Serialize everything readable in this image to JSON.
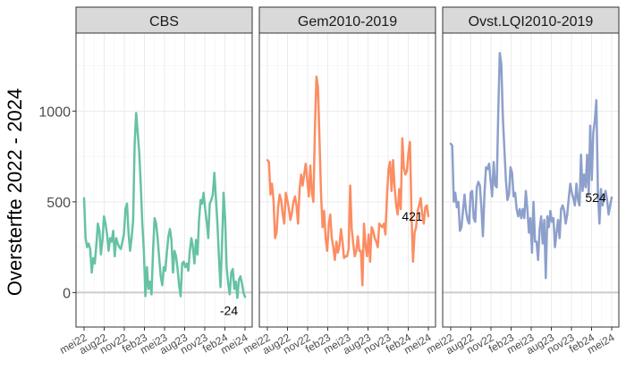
{
  "chart_data": {
    "type": "line",
    "ylabel": "Oversterfte 2022 - 2024",
    "ylim": [
      -190,
      1430
    ],
    "y_ticks": [
      0,
      500,
      1000
    ],
    "x_ticks": [
      "mei22",
      "aug22",
      "nov22",
      "feb23",
      "mei23",
      "aug23",
      "nov23",
      "feb24",
      "mei24"
    ],
    "reference_line": 0,
    "grid": true,
    "panels": [
      {
        "name": "CBS",
        "color": "#66c2a5",
        "last_label": "-24",
        "values": [
          520,
          300,
          250,
          270,
          240,
          110,
          190,
          160,
          260,
          380,
          340,
          210,
          290,
          420,
          380,
          320,
          230,
          300,
          280,
          340,
          200,
          300,
          270,
          250,
          240,
          280,
          320,
          460,
          490,
          330,
          230,
          300,
          400,
          820,
          990,
          880,
          770,
          590,
          380,
          230,
          -20,
          140,
          20,
          60,
          -10,
          230,
          410,
          380,
          300,
          190,
          90,
          40,
          140,
          120,
          220,
          310,
          350,
          290,
          110,
          230,
          200,
          130,
          40,
          -20,
          160,
          170,
          140,
          160,
          120,
          230,
          300,
          250,
          160,
          290,
          210,
          400,
          510,
          490,
          550,
          460,
          390,
          300,
          490,
          510,
          540,
          660,
          520,
          380,
          190,
          30,
          270,
          550,
          410,
          140,
          50,
          -10,
          110,
          130,
          20,
          60,
          -30,
          70,
          90,
          50,
          0,
          -24
        ]
      },
      {
        "name": "Gem2010-2019",
        "color": "#fc8d62",
        "last_label": "421",
        "values": [
          730,
          720,
          540,
          600,
          510,
          300,
          330,
          470,
          540,
          510,
          430,
          380,
          550,
          510,
          460,
          400,
          440,
          500,
          530,
          480,
          380,
          570,
          650,
          590,
          650,
          710,
          620,
          530,
          700,
          550,
          500,
          900,
          1190,
          1130,
          840,
          540,
          360,
          450,
          300,
          230,
          370,
          430,
          300,
          250,
          180,
          280,
          220,
          260,
          350,
          280,
          190,
          200,
          200,
          240,
          590,
          350,
          270,
          200,
          230,
          310,
          230,
          230,
          40,
          380,
          260,
          200,
          320,
          170,
          360,
          340,
          300,
          280,
          250,
          380,
          370,
          360,
          380,
          320,
          530,
          680,
          720,
          560,
          730,
          580,
          480,
          430,
          570,
          460,
          850,
          690,
          650,
          670,
          770,
          830,
          430,
          170,
          330,
          360,
          450,
          480,
          520,
          430,
          380,
          470,
          480,
          421
        ]
      },
      {
        "name": "Ovst.LQI2010-2019",
        "color": "#8da0cb",
        "last_label": "524",
        "values": [
          820,
          810,
          500,
          550,
          470,
          500,
          340,
          360,
          450,
          540,
          450,
          400,
          380,
          550,
          560,
          410,
          390,
          580,
          610,
          590,
          470,
          310,
          540,
          690,
          680,
          710,
          620,
          530,
          720,
          590,
          580,
          990,
          1320,
          1260,
          970,
          790,
          620,
          510,
          540,
          690,
          660,
          530,
          550,
          460,
          420,
          460,
          410,
          460,
          410,
          560,
          460,
          330,
          410,
          220,
          500,
          280,
          280,
          180,
          350,
          420,
          270,
          400,
          80,
          420,
          360,
          450,
          390,
          410,
          250,
          330,
          400,
          300,
          460,
          480,
          450,
          380,
          430,
          520,
          600,
          550,
          520,
          480,
          600,
          510,
          480,
          760,
          560,
          650,
          580,
          760,
          540,
          920,
          620,
          880,
          950,
          1060,
          560,
          380,
          570,
          480,
          520,
          560,
          510,
          430,
          480,
          524
        ]
      }
    ]
  }
}
